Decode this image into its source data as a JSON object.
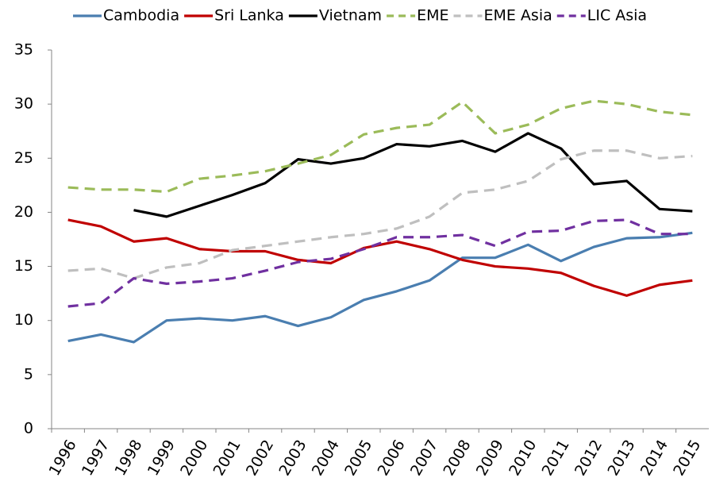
{
  "chart_data": {
    "type": "line",
    "categories": [
      "1996",
      "1997",
      "1998",
      "1999",
      "2000",
      "2001",
      "2002",
      "2003",
      "2004",
      "2005",
      "2006",
      "2007",
      "2008",
      "2009",
      "2010",
      "2011",
      "2012",
      "2013",
      "2014",
      "2015"
    ],
    "series": [
      {
        "name": "Cambodia",
        "color": "#4a7eb0",
        "dashed": false,
        "values": [
          8.1,
          8.7,
          8.0,
          10.0,
          10.2,
          10.0,
          10.4,
          9.5,
          10.3,
          11.9,
          12.7,
          13.7,
          15.8,
          15.8,
          17.0,
          15.5,
          16.8,
          17.6,
          17.7,
          18.1
        ]
      },
      {
        "name": "Sri Lanka",
        "color": "#c00000",
        "dashed": false,
        "values": [
          19.3,
          18.7,
          17.3,
          17.6,
          16.6,
          16.4,
          16.4,
          15.6,
          15.3,
          16.7,
          17.3,
          16.6,
          15.6,
          15.0,
          14.8,
          14.4,
          13.2,
          12.3,
          13.3,
          13.7
        ]
      },
      {
        "name": "Vietnam",
        "color": "#000000",
        "dashed": false,
        "values": [
          null,
          null,
          20.2,
          19.6,
          20.6,
          21.6,
          22.7,
          24.9,
          24.5,
          25.0,
          26.3,
          26.1,
          26.6,
          25.6,
          27.3,
          25.9,
          22.6,
          22.9,
          20.3,
          20.1
        ]
      },
      {
        "name": "EME",
        "color": "#9bbb59",
        "dashed": true,
        "values": [
          22.3,
          22.1,
          22.1,
          21.9,
          23.1,
          23.4,
          23.8,
          24.5,
          25.3,
          27.2,
          27.8,
          28.1,
          30.2,
          27.3,
          28.1,
          29.6,
          30.3,
          30.0,
          29.3,
          29.0
        ]
      },
      {
        "name": "EME Asia",
        "color": "#bfbfbf",
        "dashed": true,
        "values": [
          14.6,
          14.8,
          13.9,
          14.9,
          15.3,
          16.5,
          16.9,
          17.3,
          17.7,
          18.0,
          18.5,
          19.6,
          21.8,
          22.1,
          22.9,
          24.9,
          25.7,
          25.7,
          25.0,
          25.2
        ]
      },
      {
        "name": "LIC Asia",
        "color": "#7030a0",
        "dashed": true,
        "values": [
          11.3,
          11.6,
          13.9,
          13.4,
          13.6,
          13.9,
          14.6,
          15.4,
          15.7,
          16.6,
          17.7,
          17.7,
          17.9,
          16.9,
          18.2,
          18.3,
          19.2,
          19.3,
          18.0,
          18.0
        ]
      }
    ],
    "ylim": [
      0,
      35
    ],
    "yticks": [
      0,
      5,
      10,
      15,
      20,
      25,
      30,
      35
    ],
    "grid": false,
    "legend": "top"
  }
}
